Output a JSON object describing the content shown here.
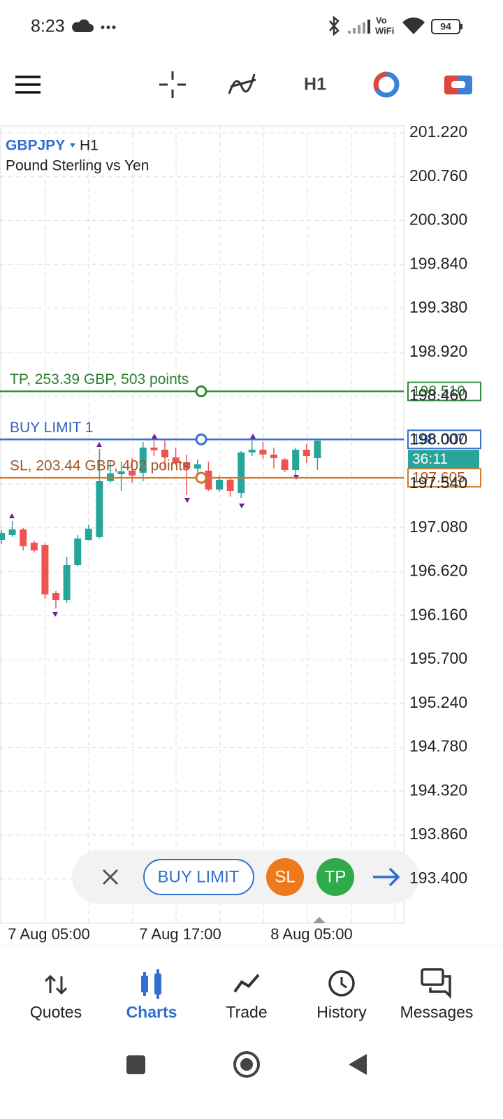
{
  "status_bar": {
    "time": "8:23",
    "network_top": "Vo",
    "network_bottom": "WiFi",
    "battery": "94"
  },
  "toolbar": {
    "timeframe": "H1"
  },
  "chart": {
    "type": "candlestick",
    "symbol": "GBPJPY",
    "timeframe": "H1",
    "description": "Pound Sterling vs Yen",
    "ylim": [
      192.936,
      201.293
    ],
    "yticks": [
      {
        "value": 201.22,
        "label": "201.220"
      },
      {
        "value": 200.76,
        "label": "200.760"
      },
      {
        "value": 200.3,
        "label": "200.300"
      },
      {
        "value": 199.84,
        "label": "199.840"
      },
      {
        "value": 199.38,
        "label": "199.380"
      },
      {
        "value": 198.92,
        "label": "198.920"
      },
      {
        "value": 198.46,
        "label": "198.460"
      },
      {
        "value": 198.0,
        "label": "198.000"
      },
      {
        "value": 197.54,
        "label": "197.540"
      },
      {
        "value": 197.08,
        "label": "197.080"
      },
      {
        "value": 196.62,
        "label": "196.620"
      },
      {
        "value": 196.16,
        "label": "196.160"
      },
      {
        "value": 195.7,
        "label": "195.700"
      },
      {
        "value": 195.24,
        "label": "195.240"
      },
      {
        "value": 194.78,
        "label": "194.780"
      },
      {
        "value": 194.32,
        "label": "194.320"
      },
      {
        "value": 193.86,
        "label": "193.860"
      },
      {
        "value": 193.4,
        "label": "193.400"
      }
    ],
    "xlabels": [
      "7 Aug 05:00",
      "7 Aug 17:00",
      "8 Aug 05:00"
    ],
    "up_color": "#26a69a",
    "down_color": "#ef5350",
    "candles": {
      "open": [
        196.953,
        197.005,
        197.063,
        196.924,
        196.902,
        196.396,
        196.323,
        196.689,
        196.953,
        196.983,
        197.569,
        197.642,
        197.679,
        197.657,
        197.921,
        197.899,
        197.818,
        197.767,
        197.701,
        197.679,
        197.481,
        197.584,
        197.444,
        197.87,
        197.899,
        197.848,
        197.796,
        197.686,
        197.899,
        197.811
      ],
      "high": [
        197.056,
        197.151,
        197.078,
        196.946,
        196.917,
        196.418,
        196.777,
        197.005,
        197.115,
        197.906,
        197.774,
        197.774,
        197.811,
        197.98,
        197.994,
        197.994,
        197.921,
        197.848,
        197.796,
        197.774,
        197.628,
        197.598,
        197.884,
        197.994,
        197.98,
        197.921,
        197.811,
        197.921,
        197.958,
        197.994
      ],
      "low": [
        196.909,
        196.983,
        196.843,
        196.821,
        196.338,
        196.235,
        196.294,
        196.675,
        196.946,
        196.968,
        197.554,
        197.466,
        197.554,
        197.569,
        197.833,
        197.701,
        197.738,
        197.423,
        197.628,
        197.466,
        197.459,
        197.408,
        197.393,
        197.833,
        197.804,
        197.701,
        197.664,
        197.628,
        197.76,
        197.686
      ],
      "close": [
        197.027,
        197.063,
        196.887,
        196.843,
        196.382,
        196.323,
        196.689,
        196.968,
        197.071,
        197.569,
        197.65,
        197.672,
        197.628,
        197.921,
        197.892,
        197.818,
        197.76,
        197.701,
        197.745,
        197.481,
        197.584,
        197.466,
        197.87,
        197.899,
        197.848,
        197.811,
        197.686,
        197.899,
        197.833,
        197.994
      ]
    },
    "levels": [
      {
        "label": "TP, 253.39 GBP, 503 points",
        "price": {
          "value": 198.51,
          "label": "198.510"
        },
        "color": "#2e8b3a",
        "text_color": "#2e7d32"
      },
      {
        "label": "BUY LIMIT 1",
        "price": {
          "value": 198.007,
          "label": "198.007"
        },
        "color": "#3a6fd0",
        "text_color": "#2f62c0"
      },
      {
        "label": "SL, 203.44 GBP, 402 points",
        "price": {
          "value": 197.605,
          "label": "197.605"
        },
        "color": "#d2782a",
        "text_color": "#a0582a"
      }
    ],
    "countdown": "36:11"
  },
  "order_bar": {
    "buy_limit": "BUY LIMIT",
    "sl": "SL",
    "tp": "TP"
  },
  "nav": [
    "Quotes",
    "Charts",
    "Trade",
    "History",
    "Messages"
  ]
}
